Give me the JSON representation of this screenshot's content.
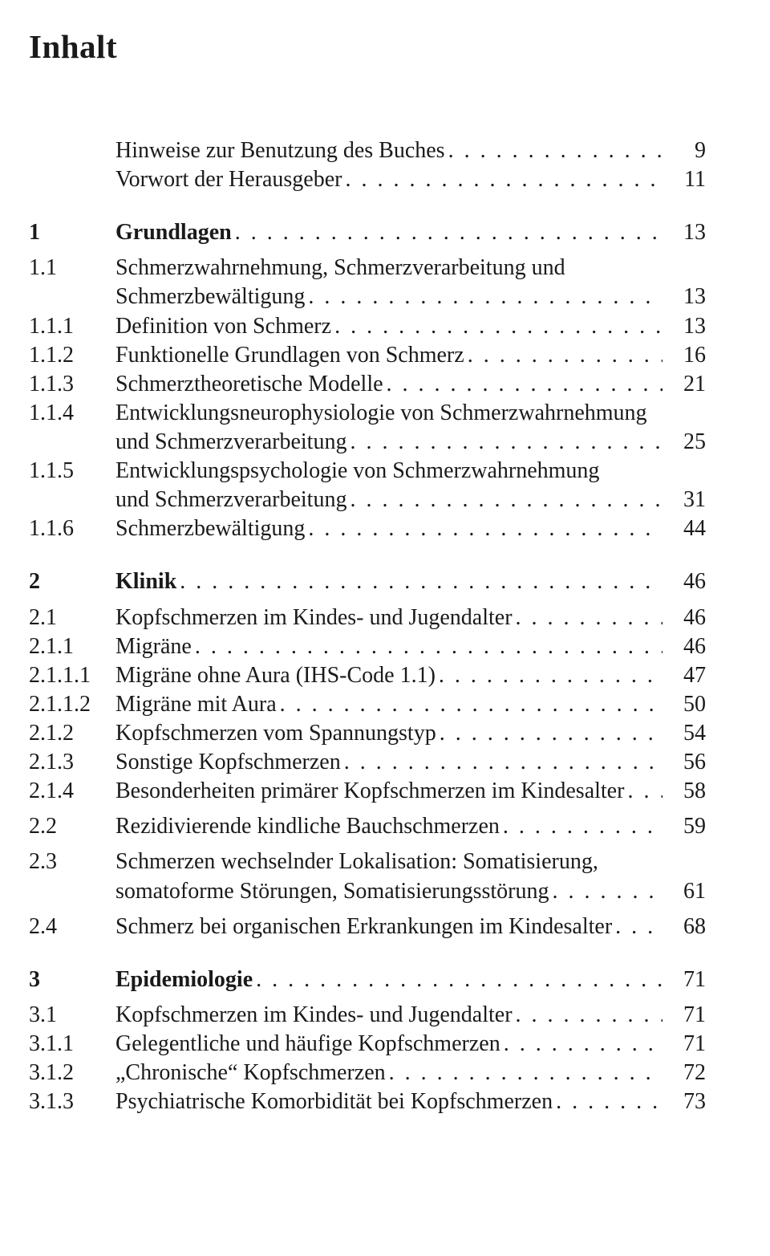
{
  "title": "Inhalt",
  "dots": ". . . . . . . . . . . . . . . . . . . . . . . . . . . . . . . . . . . . . . . . . . . . . . . . . . . . . . . . . . . . . . . . . . . . . . . . . . . . . . . . . . . . . . . . . . . . . . . . . . . . . . . . . . . . . . . . . . . . . . . .",
  "entries": [
    {
      "num": "",
      "label": "Hinweise zur Benutzung des Buches",
      "page": "9",
      "bold": false,
      "gap_before": ""
    },
    {
      "num": "",
      "label": "Vorwort der Herausgeber",
      "page": "11",
      "bold": false,
      "gap_before": ""
    },
    {
      "num": "1",
      "label": "Grundlagen",
      "page": "13",
      "bold": true,
      "gap_before": "xl"
    },
    {
      "num": "1.1",
      "label": "Schmerzwahrnehmung, Schmerzverarbeitung und",
      "cont": "Schmerzbewältigung",
      "page": "13",
      "bold": false,
      "gap_before": "md"
    },
    {
      "num": "1.1.1",
      "label": "Definition von Schmerz",
      "page": "13",
      "bold": false,
      "gap_before": ""
    },
    {
      "num": "1.1.2",
      "label": "Funktionelle Grundlagen von Schmerz",
      "page": "16",
      "bold": false,
      "gap_before": ""
    },
    {
      "num": "1.1.3",
      "label": "Schmerztheoretische Modelle",
      "page": "21",
      "bold": false,
      "gap_before": ""
    },
    {
      "num": "1.1.4",
      "label": "Entwicklungsneurophysiologie von Schmerzwahrnehmung",
      "cont": "und Schmerzverarbeitung",
      "page": "25",
      "bold": false,
      "gap_before": ""
    },
    {
      "num": "1.1.5",
      "label": "Entwicklungspsychologie von Schmerzwahrnehmung",
      "cont": "und Schmerzverarbeitung",
      "page": "31",
      "bold": false,
      "gap_before": ""
    },
    {
      "num": "1.1.6",
      "label": "Schmerzbewältigung",
      "page": "44",
      "bold": false,
      "gap_before": ""
    },
    {
      "num": "2",
      "label": "Klinik",
      "page": "46",
      "bold": true,
      "gap_before": "xl"
    },
    {
      "num": "2.1",
      "label": "Kopfschmerzen im Kindes- und Jugendalter",
      "page": "46",
      "bold": false,
      "gap_before": "md"
    },
    {
      "num": "2.1.1",
      "label": "Migräne",
      "page": "46",
      "bold": false,
      "gap_before": ""
    },
    {
      "num": "2.1.1.1",
      "label": "Migräne ohne Aura (IHS-Code 1.1)",
      "page": "47",
      "bold": false,
      "gap_before": ""
    },
    {
      "num": "2.1.1.2",
      "label": "Migräne mit Aura",
      "page": "50",
      "bold": false,
      "gap_before": ""
    },
    {
      "num": "2.1.2",
      "label": "Kopfschmerzen vom Spannungstyp",
      "page": "54",
      "bold": false,
      "gap_before": ""
    },
    {
      "num": "2.1.3",
      "label": "Sonstige Kopfschmerzen",
      "page": "56",
      "bold": false,
      "gap_before": ""
    },
    {
      "num": "2.1.4",
      "label": "Besonderheiten primärer Kopfschmerzen im Kindesalter",
      "page": "58",
      "bold": false,
      "gap_before": ""
    },
    {
      "num": "2.2",
      "label": "Rezidivierende kindliche Bauchschmerzen",
      "page": "59",
      "bold": false,
      "gap_before": "md"
    },
    {
      "num": "2.3",
      "label": "Schmerzen wechselnder Lokalisation: Somatisierung,",
      "cont": "somatoforme Störungen, Somatisierungsstörung",
      "page": "61",
      "bold": false,
      "gap_before": "md"
    },
    {
      "num": "2.4",
      "label": "Schmerz bei organischen Erkrankungen im Kindesalter",
      "page": "68",
      "bold": false,
      "gap_before": "md"
    },
    {
      "num": "3",
      "label": "Epidemiologie",
      "page": "71",
      "bold": true,
      "gap_before": "xl"
    },
    {
      "num": "3.1",
      "label": "Kopfschmerzen im Kindes- und Jugendalter",
      "page": "71",
      "bold": false,
      "gap_before": "md"
    },
    {
      "num": "3.1.1",
      "label": "Gelegentliche und häufige Kopfschmerzen",
      "page": "71",
      "bold": false,
      "gap_before": ""
    },
    {
      "num": "3.1.2",
      "label": "„Chronische“  Kopfschmerzen",
      "page": "72",
      "bold": false,
      "gap_before": ""
    },
    {
      "num": "3.1.3",
      "label": "Psychiatrische Komorbidität bei Kopfschmerzen",
      "page": "73",
      "bold": false,
      "gap_before": ""
    }
  ]
}
